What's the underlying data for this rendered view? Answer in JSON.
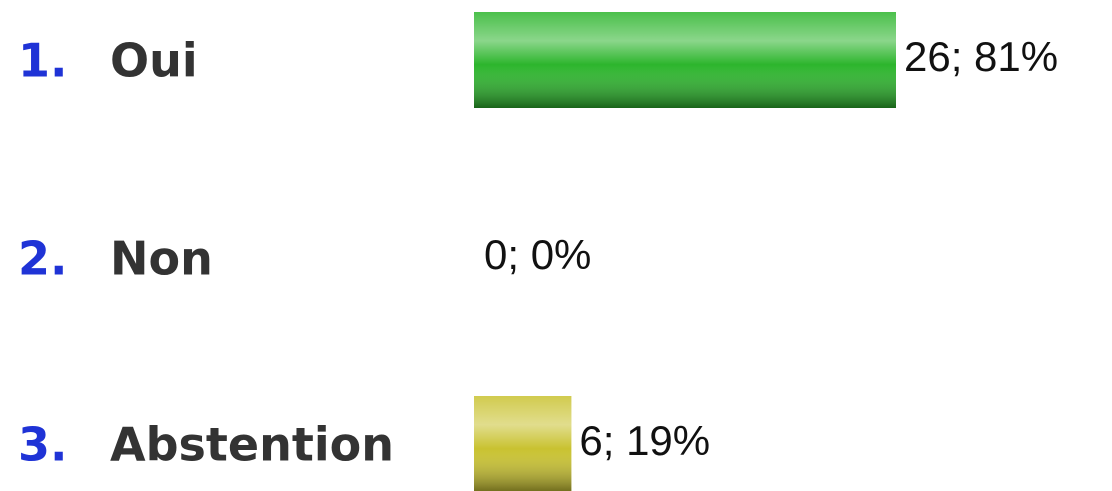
{
  "chart_data": {
    "type": "bar",
    "markers": [
      "1.",
      "2.",
      "3."
    ],
    "categories": [
      "Oui",
      "Non",
      "Abstention"
    ],
    "values": [
      26,
      0,
      6
    ],
    "value_labels": [
      "26; 81%",
      "0; 0%",
      "6; 19%"
    ],
    "colors": [
      "#2cb52c",
      null,
      "#c9c230"
    ]
  }
}
